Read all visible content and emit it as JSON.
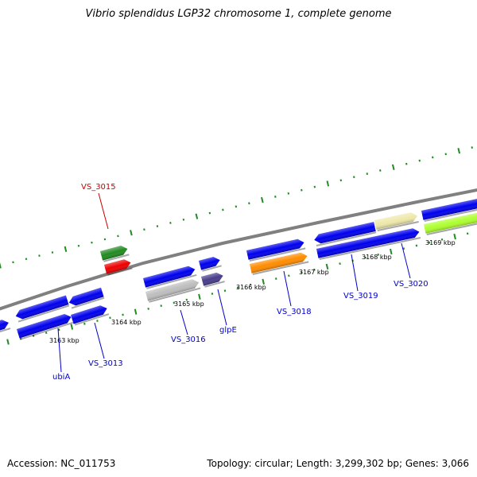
{
  "title": "Vibrio splendidus LGP32 chromosome 1, complete genome",
  "footer": {
    "accession": "Accession: NC_011753",
    "summary": "Topology: circular; Length: 3,299,302 bp; Genes: 3,066"
  },
  "colors": {
    "backbone": "#808080",
    "tick": "#228b22",
    "gene_label": "#0000cc",
    "highlight_label": "#cc0000"
  },
  "scale_labels": [
    "3163 kbp",
    "3164 kbp",
    "3165 kbp",
    "3166 kbp",
    "3167 kbp",
    "3168 kbp",
    "3169 kbp"
  ],
  "genes": [
    {
      "id": "g0",
      "color": "#0000ee"
    },
    {
      "id": "g1",
      "color": "#0000ee"
    },
    {
      "id": "g2",
      "color": "#0000ee"
    },
    {
      "id": "g3",
      "color": "#0000ee"
    },
    {
      "id": "g4",
      "color": "#0000ee"
    },
    {
      "id": "g5",
      "color": "#228b22"
    },
    {
      "id": "g6",
      "color": "#ee0000"
    },
    {
      "id": "g7",
      "color": "#0000ee"
    },
    {
      "id": "g8",
      "color": "#bebebe"
    },
    {
      "id": "g9",
      "color": "#0000ee"
    },
    {
      "id": "g10",
      "color": "#483d8b"
    },
    {
      "id": "g11",
      "color": "#0000ee"
    },
    {
      "id": "g12",
      "color": "#ff8c00"
    },
    {
      "id": "g13",
      "color": "#0000ee"
    },
    {
      "id": "g14",
      "color": "#0000ee"
    },
    {
      "id": "g15",
      "color": "#eee8aa"
    },
    {
      "id": "g16",
      "color": "#0000ee"
    },
    {
      "id": "g17",
      "color": "#adff2f"
    }
  ],
  "gene_labels": [
    {
      "text": "VS_3015",
      "color": "#cc0000"
    },
    {
      "text": "ubiA",
      "color": "#0000cc"
    },
    {
      "text": "VS_3013",
      "color": "#0000cc"
    },
    {
      "text": "VS_3016",
      "color": "#0000cc"
    },
    {
      "text": "glpE",
      "color": "#0000cc"
    },
    {
      "text": "VS_3018",
      "color": "#0000cc"
    },
    {
      "text": "VS_3019",
      "color": "#0000cc"
    },
    {
      "text": "VS_3020",
      "color": "#0000cc"
    }
  ]
}
